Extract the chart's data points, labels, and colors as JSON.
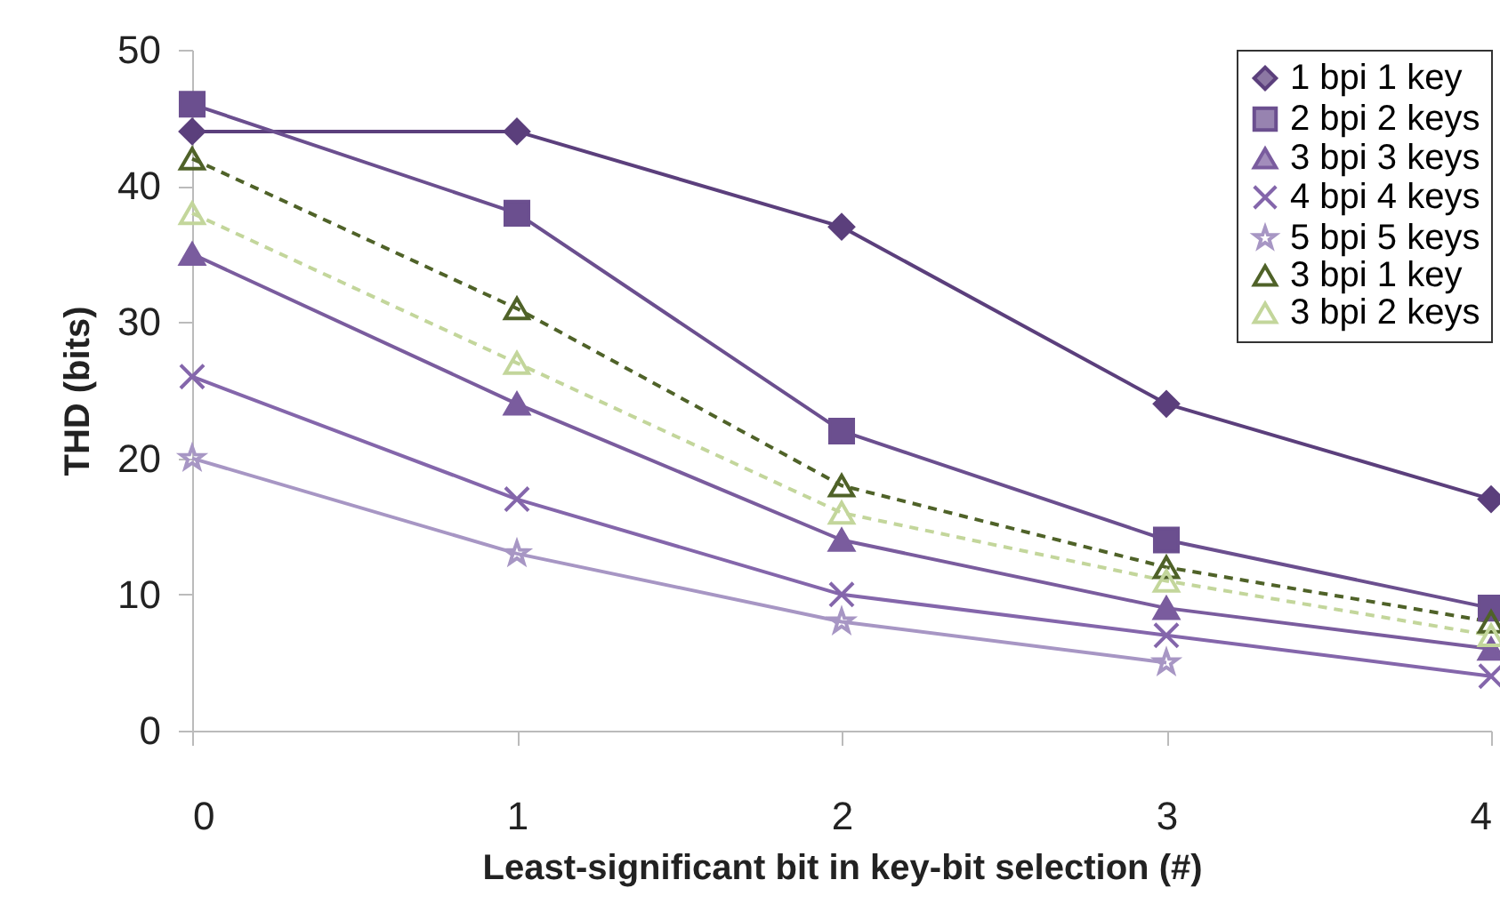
{
  "chart_data": {
    "type": "line",
    "x": [
      0,
      1,
      2,
      3,
      4
    ],
    "xlim": [
      0,
      4
    ],
    "xticks": [
      0,
      1,
      2,
      3,
      4
    ],
    "ylim": [
      0,
      50
    ],
    "yticks": [
      0,
      10,
      20,
      30,
      40,
      50
    ],
    "xlabel": "Least-significant bit in key-bit selection (#)",
    "ylabel": "THD (bits)",
    "legend": "top right",
    "series": [
      {
        "name": "1 bpi 1 key",
        "color": "#5b3f7c",
        "marker": "diamond",
        "line_style": "solid",
        "values": [
          44,
          44,
          37,
          24,
          17
        ]
      },
      {
        "name": "2 bpi 2 keys",
        "color": "#6b4f8f",
        "marker": "square",
        "line_style": "solid",
        "values": [
          46,
          38,
          22,
          14,
          9
        ]
      },
      {
        "name": "3 bpi 3 keys",
        "color": "#7a5c9e",
        "marker": "triangle",
        "line_style": "solid",
        "values": [
          35,
          24,
          14,
          9,
          6
        ]
      },
      {
        "name": "4 bpi 4 keys",
        "color": "#8466ab",
        "marker": "cross",
        "line_style": "solid",
        "values": [
          26,
          17,
          10,
          7,
          4
        ]
      },
      {
        "name": "5 bpi 5 keys",
        "color": "#a796c4",
        "marker": "star",
        "line_style": "solid",
        "values": [
          20,
          13,
          8,
          5,
          null
        ]
      },
      {
        "name": "3 bpi 1 key",
        "color": "#4f6228",
        "marker": "triangle",
        "line_style": "dashed",
        "values": [
          42,
          31,
          18,
          12,
          8
        ]
      },
      {
        "name": "3 bpi 2 keys",
        "color": "#c3d69b",
        "marker": "triangle",
        "line_style": "dashed",
        "values": [
          38,
          27,
          16,
          11,
          7
        ]
      }
    ]
  }
}
